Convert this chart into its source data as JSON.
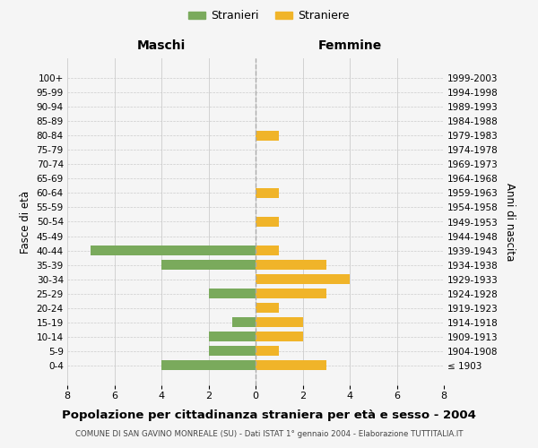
{
  "age_groups": [
    "100+",
    "95-99",
    "90-94",
    "85-89",
    "80-84",
    "75-79",
    "70-74",
    "65-69",
    "60-64",
    "55-59",
    "50-54",
    "45-49",
    "40-44",
    "35-39",
    "30-34",
    "25-29",
    "20-24",
    "15-19",
    "10-14",
    "5-9",
    "0-4"
  ],
  "birth_years": [
    "≤ 1903",
    "1904-1908",
    "1909-1913",
    "1914-1918",
    "1919-1923",
    "1924-1928",
    "1929-1933",
    "1934-1938",
    "1939-1943",
    "1944-1948",
    "1949-1953",
    "1954-1958",
    "1959-1963",
    "1964-1968",
    "1969-1973",
    "1974-1978",
    "1979-1983",
    "1984-1988",
    "1989-1993",
    "1994-1998",
    "1999-2003"
  ],
  "stranieri": [
    0,
    0,
    0,
    0,
    0,
    0,
    0,
    0,
    0,
    0,
    0,
    0,
    7,
    4,
    0,
    2,
    0,
    1,
    2,
    2,
    4
  ],
  "straniere": [
    0,
    0,
    0,
    0,
    1,
    0,
    0,
    0,
    1,
    0,
    1,
    0,
    1,
    3,
    4,
    3,
    1,
    2,
    2,
    1,
    3
  ],
  "stranieri_color": "#7aaa5c",
  "straniere_color": "#f0b429",
  "bg_color": "#f5f5f5",
  "grid_color": "#cccccc",
  "center_line_color": "#aaaaaa",
  "xlim": 8,
  "title": "Popolazione per cittadinanza straniera per età e sesso - 2004",
  "subtitle": "COMUNE DI SAN GAVINO MONREALE (SU) - Dati ISTAT 1° gennaio 2004 - Elaborazione TUTTITALIA.IT",
  "ylabel_left": "Fasce di età",
  "ylabel_right": "Anni di nascita",
  "xlabel_maschi": "Maschi",
  "xlabel_femmine": "Femmine",
  "legend_stranieri": "Stranieri",
  "legend_straniere": "Straniere"
}
